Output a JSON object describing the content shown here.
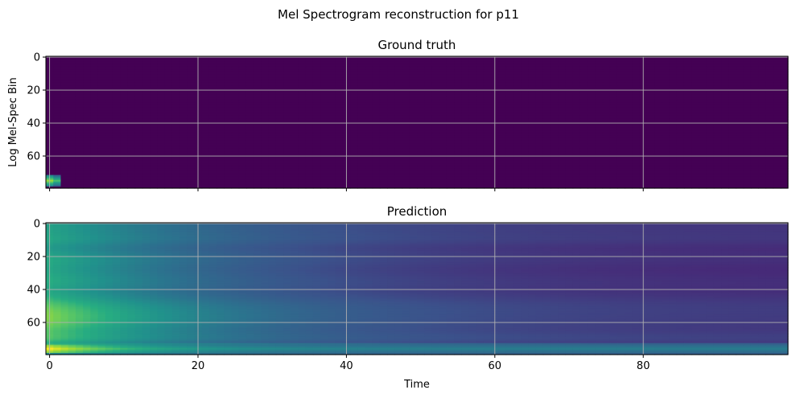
{
  "figure": {
    "suptitle": "Mel Spectrogram reconstruction for p11"
  },
  "chart_data": {
    "type": "heatmap",
    "colormap": "viridis",
    "grid": true,
    "sharex": true,
    "x_range": [
      -0.5,
      99.5
    ],
    "y_range_inverted": [
      79.5,
      -0.5
    ],
    "xticks": [
      0,
      20,
      40,
      60,
      80
    ],
    "yticks": [
      0,
      20,
      40,
      60
    ],
    "xlabel": "Time",
    "ylabel": "Log Mel-Spec Bin",
    "panels": [
      {
        "title": "Ground truth",
        "description_values": {
          "background_level": 0.0,
          "hotspot": {
            "time": [
              0,
              1
            ],
            "bins": [
              72,
              78
            ],
            "level": 0.85
          }
        }
      },
      {
        "title": "Prediction",
        "description_values": {
          "dominant_band": {
            "bins": [
              75,
              78
            ],
            "peak_time": [
              0,
              10
            ],
            "peak_level": 1.0
          },
          "decay": "intensity decreases with time across all bins"
        }
      }
    ]
  }
}
